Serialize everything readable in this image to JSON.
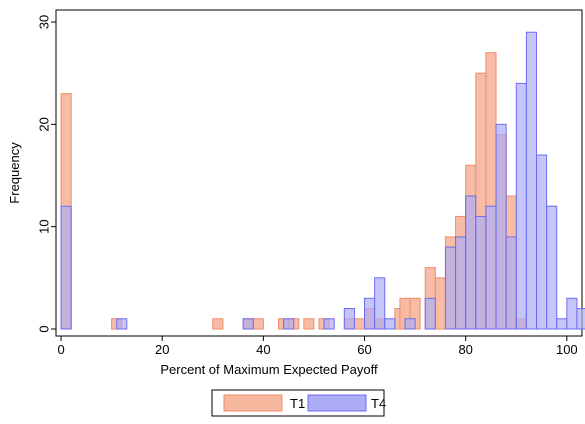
{
  "chart_data": {
    "type": "bar",
    "subtype": "overlaid-histogram",
    "xlabel": "Percent of Maximum Expected Payoff",
    "ylabel": "Frequency",
    "xlim": [
      -1,
      103
    ],
    "ylim": [
      0,
      30
    ],
    "x_ticks": [
      0,
      20,
      40,
      60,
      80,
      100
    ],
    "y_ticks": [
      0,
      10,
      20,
      30
    ],
    "bin_width": 2,
    "grid": false,
    "legend_position": "bottom",
    "series": [
      {
        "name": "T1",
        "fill": "#F7B8A0",
        "stroke": "#F08C6C",
        "bins": [
          {
            "x": 0,
            "y": 23
          },
          {
            "x": 10,
            "y": 1
          },
          {
            "x": 30,
            "y": 1
          },
          {
            "x": 36,
            "y": 1
          },
          {
            "x": 38,
            "y": 1
          },
          {
            "x": 43,
            "y": 1
          },
          {
            "x": 45,
            "y": 1
          },
          {
            "x": 48,
            "y": 1
          },
          {
            "x": 51,
            "y": 1
          },
          {
            "x": 56,
            "y": 1
          },
          {
            "x": 58,
            "y": 1
          },
          {
            "x": 60,
            "y": 2
          },
          {
            "x": 62,
            "y": 1
          },
          {
            "x": 66,
            "y": 2
          },
          {
            "x": 67,
            "y": 3
          },
          {
            "x": 69,
            "y": 3
          },
          {
            "x": 72,
            "y": 6
          },
          {
            "x": 74,
            "y": 5
          },
          {
            "x": 76,
            "y": 9
          },
          {
            "x": 78,
            "y": 11
          },
          {
            "x": 80,
            "y": 16
          },
          {
            "x": 82,
            "y": 25
          },
          {
            "x": 84,
            "y": 27
          },
          {
            "x": 86,
            "y": 19
          },
          {
            "x": 88,
            "y": 13
          },
          {
            "x": 90,
            "y": 1
          }
        ]
      },
      {
        "name": "T4",
        "fill": "#ADADF7",
        "stroke": "#6C6CF0",
        "bins": [
          {
            "x": 0,
            "y": 12
          },
          {
            "x": 11,
            "y": 1
          },
          {
            "x": 36,
            "y": 1
          },
          {
            "x": 44,
            "y": 1
          },
          {
            "x": 52,
            "y": 1
          },
          {
            "x": 56,
            "y": 2
          },
          {
            "x": 60,
            "y": 3
          },
          {
            "x": 62,
            "y": 5
          },
          {
            "x": 64,
            "y": 1
          },
          {
            "x": 68,
            "y": 1
          },
          {
            "x": 72,
            "y": 3
          },
          {
            "x": 76,
            "y": 8
          },
          {
            "x": 78,
            "y": 9
          },
          {
            "x": 80,
            "y": 13
          },
          {
            "x": 82,
            "y": 11
          },
          {
            "x": 84,
            "y": 12
          },
          {
            "x": 86,
            "y": 20
          },
          {
            "x": 88,
            "y": 9
          },
          {
            "x": 90,
            "y": 24
          },
          {
            "x": 92,
            "y": 29
          },
          {
            "x": 94,
            "y": 17
          },
          {
            "x": 96,
            "y": 12
          },
          {
            "x": 98,
            "y": 1
          },
          {
            "x": 100,
            "y": 3
          },
          {
            "x": 102,
            "y": 2
          }
        ]
      }
    ]
  }
}
